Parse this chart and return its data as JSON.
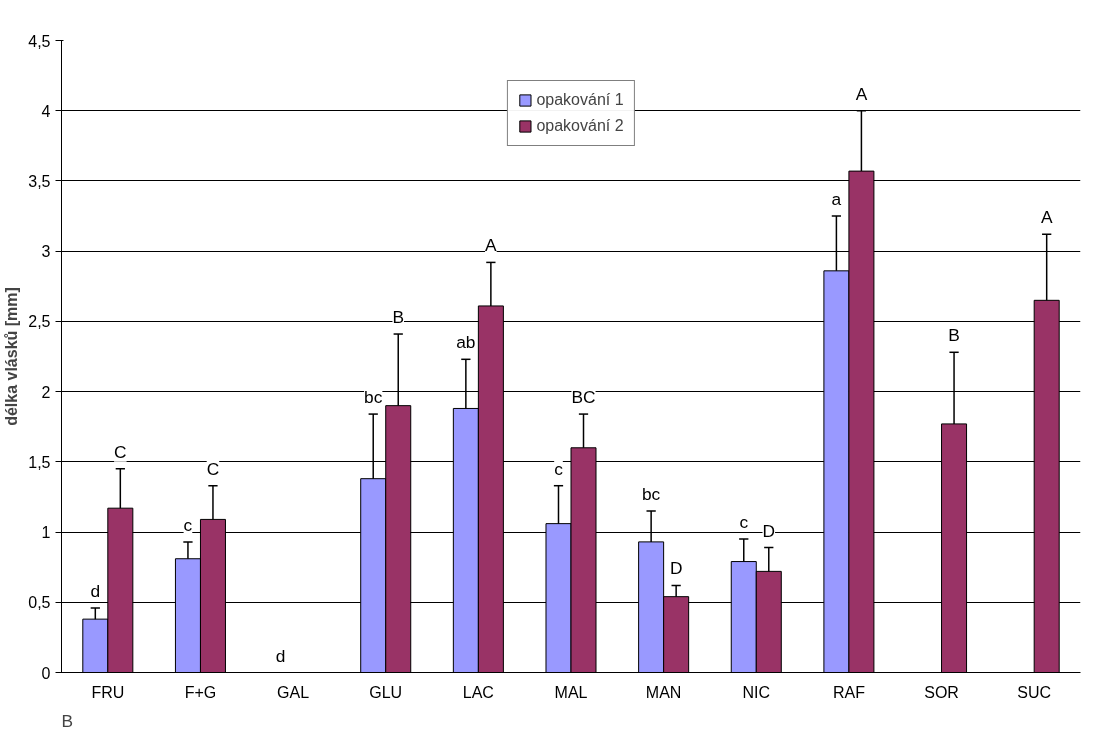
{
  "chart_data": {
    "type": "bar",
    "ylabel": "délka vlásků [mm]",
    "categories": [
      "FRU",
      "F+G",
      "GAL",
      "GLU",
      "LAC",
      "MAL",
      "MAN",
      "NIC",
      "RAF",
      "SOR",
      "SUC"
    ],
    "series": [
      {
        "name": "opakování 1",
        "color": "#9999ff",
        "values": [
          0.38,
          0.81,
          0,
          1.38,
          1.88,
          1.06,
          0.93,
          0.79,
          2.86,
          null,
          null
        ],
        "errors": [
          [
            0.38,
            0.46
          ],
          [
            0.81,
            0.93
          ],
          null,
          [
            1.38,
            1.84
          ],
          [
            1.88,
            2.23
          ],
          [
            1.06,
            1.33
          ],
          [
            0.93,
            1.15
          ],
          [
            0.79,
            0.95
          ],
          [
            2.86,
            3.25
          ],
          null,
          null
        ]
      },
      {
        "name": "opakování 2",
        "color": "#993366",
        "values": [
          1.17,
          1.09,
          null,
          1.9,
          2.61,
          1.6,
          0.54,
          0.72,
          3.57,
          1.77,
          2.65
        ],
        "errors": [
          [
            1.17,
            1.45
          ],
          [
            1.09,
            1.33
          ],
          null,
          [
            1.9,
            2.41
          ],
          [
            2.61,
            2.92
          ],
          [
            1.6,
            1.84
          ],
          [
            0.54,
            0.62
          ],
          [
            0.72,
            0.89
          ],
          [
            3.57,
            4.0
          ],
          [
            1.77,
            2.28
          ],
          [
            2.65,
            3.12
          ]
        ]
      }
    ],
    "ylim": [
      0,
      4.5
    ],
    "yticks": [
      0,
      {
        "value": 0.5,
        "label": "0,5"
      },
      1,
      {
        "value": 1.5,
        "label": "1,5"
      },
      2,
      {
        "value": 2.5,
        "label": "2,5"
      },
      3,
      {
        "value": 3.5,
        "label": "3,5"
      },
      4,
      {
        "value": 4.5,
        "label": "4,5"
      }
    ],
    "grid": "y",
    "legend": "top",
    "annotations": [
      "d",
      "c",
      "d",
      "bc",
      "ab",
      "c",
      "bc",
      "c",
      "a",
      "C",
      "C",
      "B",
      "A",
      "BC",
      "D",
      "D",
      "A",
      "B",
      "A",
      "B"
    ]
  }
}
